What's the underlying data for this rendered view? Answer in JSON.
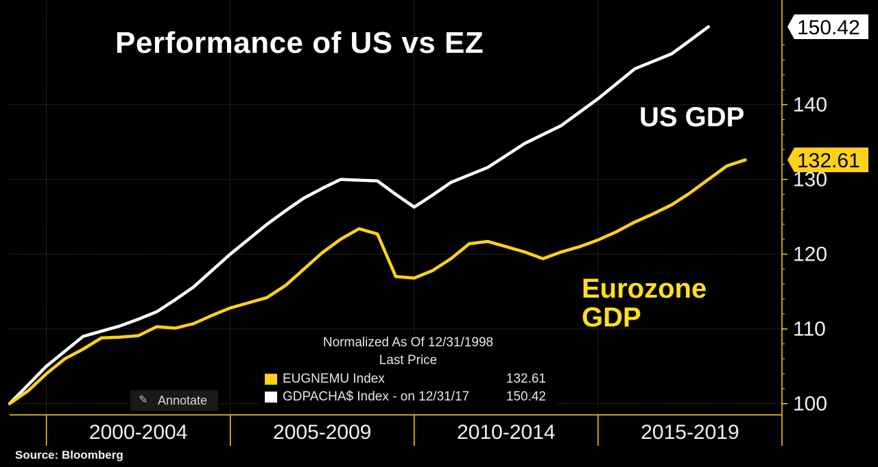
{
  "title": "Performance of US vs EZ",
  "source": "Source:  Bloomberg",
  "annotations": {
    "us": "US GDP",
    "ez_line1": "Eurozone",
    "ez_line2": "GDP"
  },
  "annotate_button": {
    "label": "Annotate",
    "icon": "pencil-icon"
  },
  "legend": {
    "header1": "Normalized As Of 12/31/1998",
    "header2": "Last Price",
    "items": [
      {
        "name": "EUGNEMU Index",
        "value": "132.61",
        "color": "#ffd21a"
      },
      {
        "name": "GDPACHA$ Index -   on 12/31/17",
        "value": "150.42",
        "color": "#ffffff"
      }
    ]
  },
  "colors": {
    "us": "#ffffff",
    "ez": "#ffd21a",
    "ez_text": "#ffe11a",
    "axis": "#ffd21a",
    "background": "#000000"
  },
  "chart_data": {
    "type": "line",
    "title": "Performance of US vs EZ",
    "xlim": [
      1998.75,
      2019.75
    ],
    "ylim": [
      98.5,
      154
    ],
    "x_tick_labels": [
      "2000-2004",
      "2005-2009",
      "2010-2014",
      "2015-2019"
    ],
    "y_ticks": [
      100,
      110,
      120,
      130,
      140
    ],
    "series": [
      {
        "name": "GDPACHA$ Index",
        "label": "US GDP",
        "last_price": 150.42,
        "points": [
          [
            1998.75,
            100
          ],
          [
            1999.25,
            102.5
          ],
          [
            1999.75,
            105
          ],
          [
            2000.25,
            107
          ],
          [
            2000.75,
            109
          ],
          [
            2001.25,
            109.7
          ],
          [
            2001.75,
            110.4
          ],
          [
            2002.25,
            111.3
          ],
          [
            2002.75,
            112.3
          ],
          [
            2003.25,
            113.9
          ],
          [
            2003.75,
            115.6
          ],
          [
            2004.25,
            117.8
          ],
          [
            2004.75,
            120
          ],
          [
            2005.25,
            122
          ],
          [
            2005.75,
            124
          ],
          [
            2006.25,
            125.8
          ],
          [
            2006.75,
            127.5
          ],
          [
            2007.25,
            128.8
          ],
          [
            2007.75,
            130
          ],
          [
            2008.25,
            129.9
          ],
          [
            2008.75,
            129.8
          ],
          [
            2009.25,
            128
          ],
          [
            2009.75,
            126.3
          ],
          [
            2010.25,
            127.9
          ],
          [
            2010.75,
            129.6
          ],
          [
            2011.25,
            130.6
          ],
          [
            2011.75,
            131.6
          ],
          [
            2012.25,
            133.2
          ],
          [
            2012.75,
            134.8
          ],
          [
            2013.25,
            136
          ],
          [
            2013.75,
            137.2
          ],
          [
            2014.25,
            139
          ],
          [
            2014.75,
            140.8
          ],
          [
            2015.25,
            142.8
          ],
          [
            2015.75,
            144.8
          ],
          [
            2016.25,
            145.8
          ],
          [
            2016.75,
            146.8
          ],
          [
            2017.25,
            148.6
          ],
          [
            2017.75,
            150.42
          ]
        ]
      },
      {
        "name": "EUGNEMU Index",
        "label": "Eurozone GDP",
        "last_price": 132.61,
        "points": [
          [
            1998.75,
            100
          ],
          [
            1999.25,
            101.7
          ],
          [
            1999.75,
            104
          ],
          [
            2000.25,
            106
          ],
          [
            2000.75,
            107.3
          ],
          [
            2001.25,
            108.8
          ],
          [
            2001.75,
            108.9
          ],
          [
            2002.25,
            109.1
          ],
          [
            2002.75,
            110.3
          ],
          [
            2003.25,
            110.1
          ],
          [
            2003.75,
            110.7
          ],
          [
            2004.25,
            111.8
          ],
          [
            2004.75,
            112.8
          ],
          [
            2005.25,
            113.5
          ],
          [
            2005.75,
            114.2
          ],
          [
            2006.25,
            115.8
          ],
          [
            2006.75,
            118
          ],
          [
            2007.25,
            120.2
          ],
          [
            2007.75,
            122
          ],
          [
            2008.25,
            123.4
          ],
          [
            2008.75,
            122.7
          ],
          [
            2009.25,
            117
          ],
          [
            2009.75,
            116.8
          ],
          [
            2010.25,
            117.8
          ],
          [
            2010.75,
            119.4
          ],
          [
            2011.25,
            121.4
          ],
          [
            2011.75,
            121.7
          ],
          [
            2012.25,
            121
          ],
          [
            2012.75,
            120.3
          ],
          [
            2013.25,
            119.4
          ],
          [
            2013.75,
            120.3
          ],
          [
            2014.25,
            121
          ],
          [
            2014.75,
            121.9
          ],
          [
            2015.25,
            123
          ],
          [
            2015.75,
            124.3
          ],
          [
            2016.25,
            125.4
          ],
          [
            2016.75,
            126.6
          ],
          [
            2017.25,
            128.2
          ],
          [
            2017.75,
            130
          ],
          [
            2018.25,
            131.8
          ],
          [
            2018.75,
            132.61
          ]
        ]
      }
    ]
  }
}
